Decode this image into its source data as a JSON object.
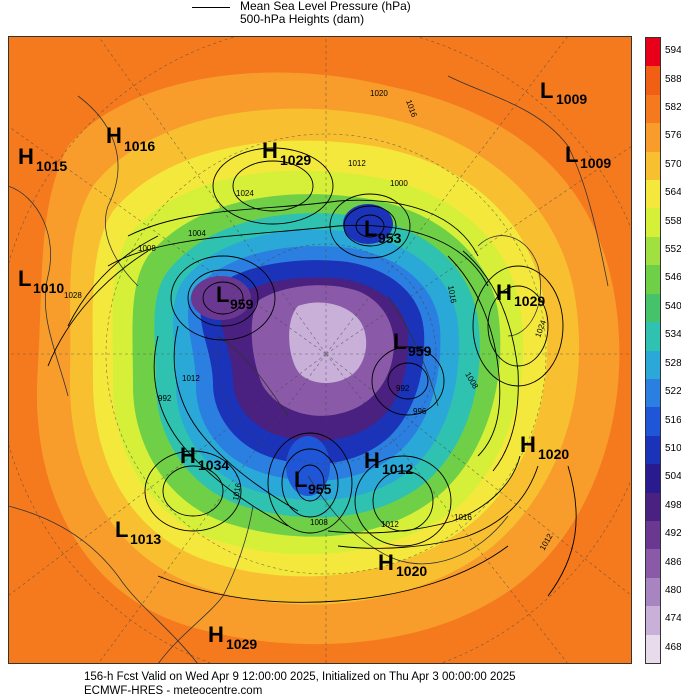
{
  "legend": {
    "mslp_label": "Mean Sea Level Pressure (hPa)",
    "heights_label": "500-hPa Heights (dam)"
  },
  "colorbar": {
    "ticks": [
      "594",
      "588",
      "582",
      "576",
      "570",
      "564",
      "558",
      "552",
      "546",
      "540",
      "534",
      "528",
      "522",
      "516",
      "510",
      "504",
      "498",
      "492",
      "486",
      "480",
      "474",
      "468"
    ],
    "colors": [
      "#e8001b",
      "#f05f13",
      "#f57a1e",
      "#f89d2b",
      "#f8c030",
      "#f5e83c",
      "#d6f03a",
      "#a0e040",
      "#6fd048",
      "#46c26a",
      "#2fc2b0",
      "#2aa8d8",
      "#2a7fe0",
      "#1f56d8",
      "#1a33b8",
      "#2a1a90",
      "#4a2080",
      "#6a3890",
      "#8a5aa8",
      "#a884c0",
      "#c8b0d8",
      "#e8dcec"
    ]
  },
  "centers": [
    {
      "letter": "L",
      "value": "1009"
    },
    {
      "letter": "H",
      "value": "1016"
    },
    {
      "letter": "H",
      "value": "1015"
    },
    {
      "letter": "H",
      "value": "1029"
    },
    {
      "letter": "L",
      "value": "1009"
    },
    {
      "letter": "L",
      "value": "953"
    },
    {
      "letter": "L",
      "value": "1010"
    },
    {
      "letter": "L",
      "value": "959"
    },
    {
      "letter": "H",
      "value": "1029"
    },
    {
      "letter": "L",
      "value": "959"
    },
    {
      "letter": "H",
      "value": "1034"
    },
    {
      "letter": "H",
      "value": "1012"
    },
    {
      "letter": "H",
      "value": "1020"
    },
    {
      "letter": "L",
      "value": "955"
    },
    {
      "letter": "L",
      "value": "1013"
    },
    {
      "letter": "H",
      "value": "1020"
    },
    {
      "letter": "H",
      "value": "1029"
    }
  ],
  "contour_labels": [
    "1020",
    "1016",
    "1012",
    "1000",
    "1024",
    "1004",
    "1008",
    "1028",
    "996",
    "992",
    "1012",
    "1016",
    "1024",
    "1008",
    "1012",
    "1008",
    "1016",
    "1012",
    "1016",
    "992"
  ],
  "footer": {
    "line1": "156-h Fcst Valid on Wed Apr  9 12:00:00 2025, Initialized on Thu Apr  3 00:00:00 2025",
    "line2": "ECMWF-HRES  - meteocentre.com"
  }
}
